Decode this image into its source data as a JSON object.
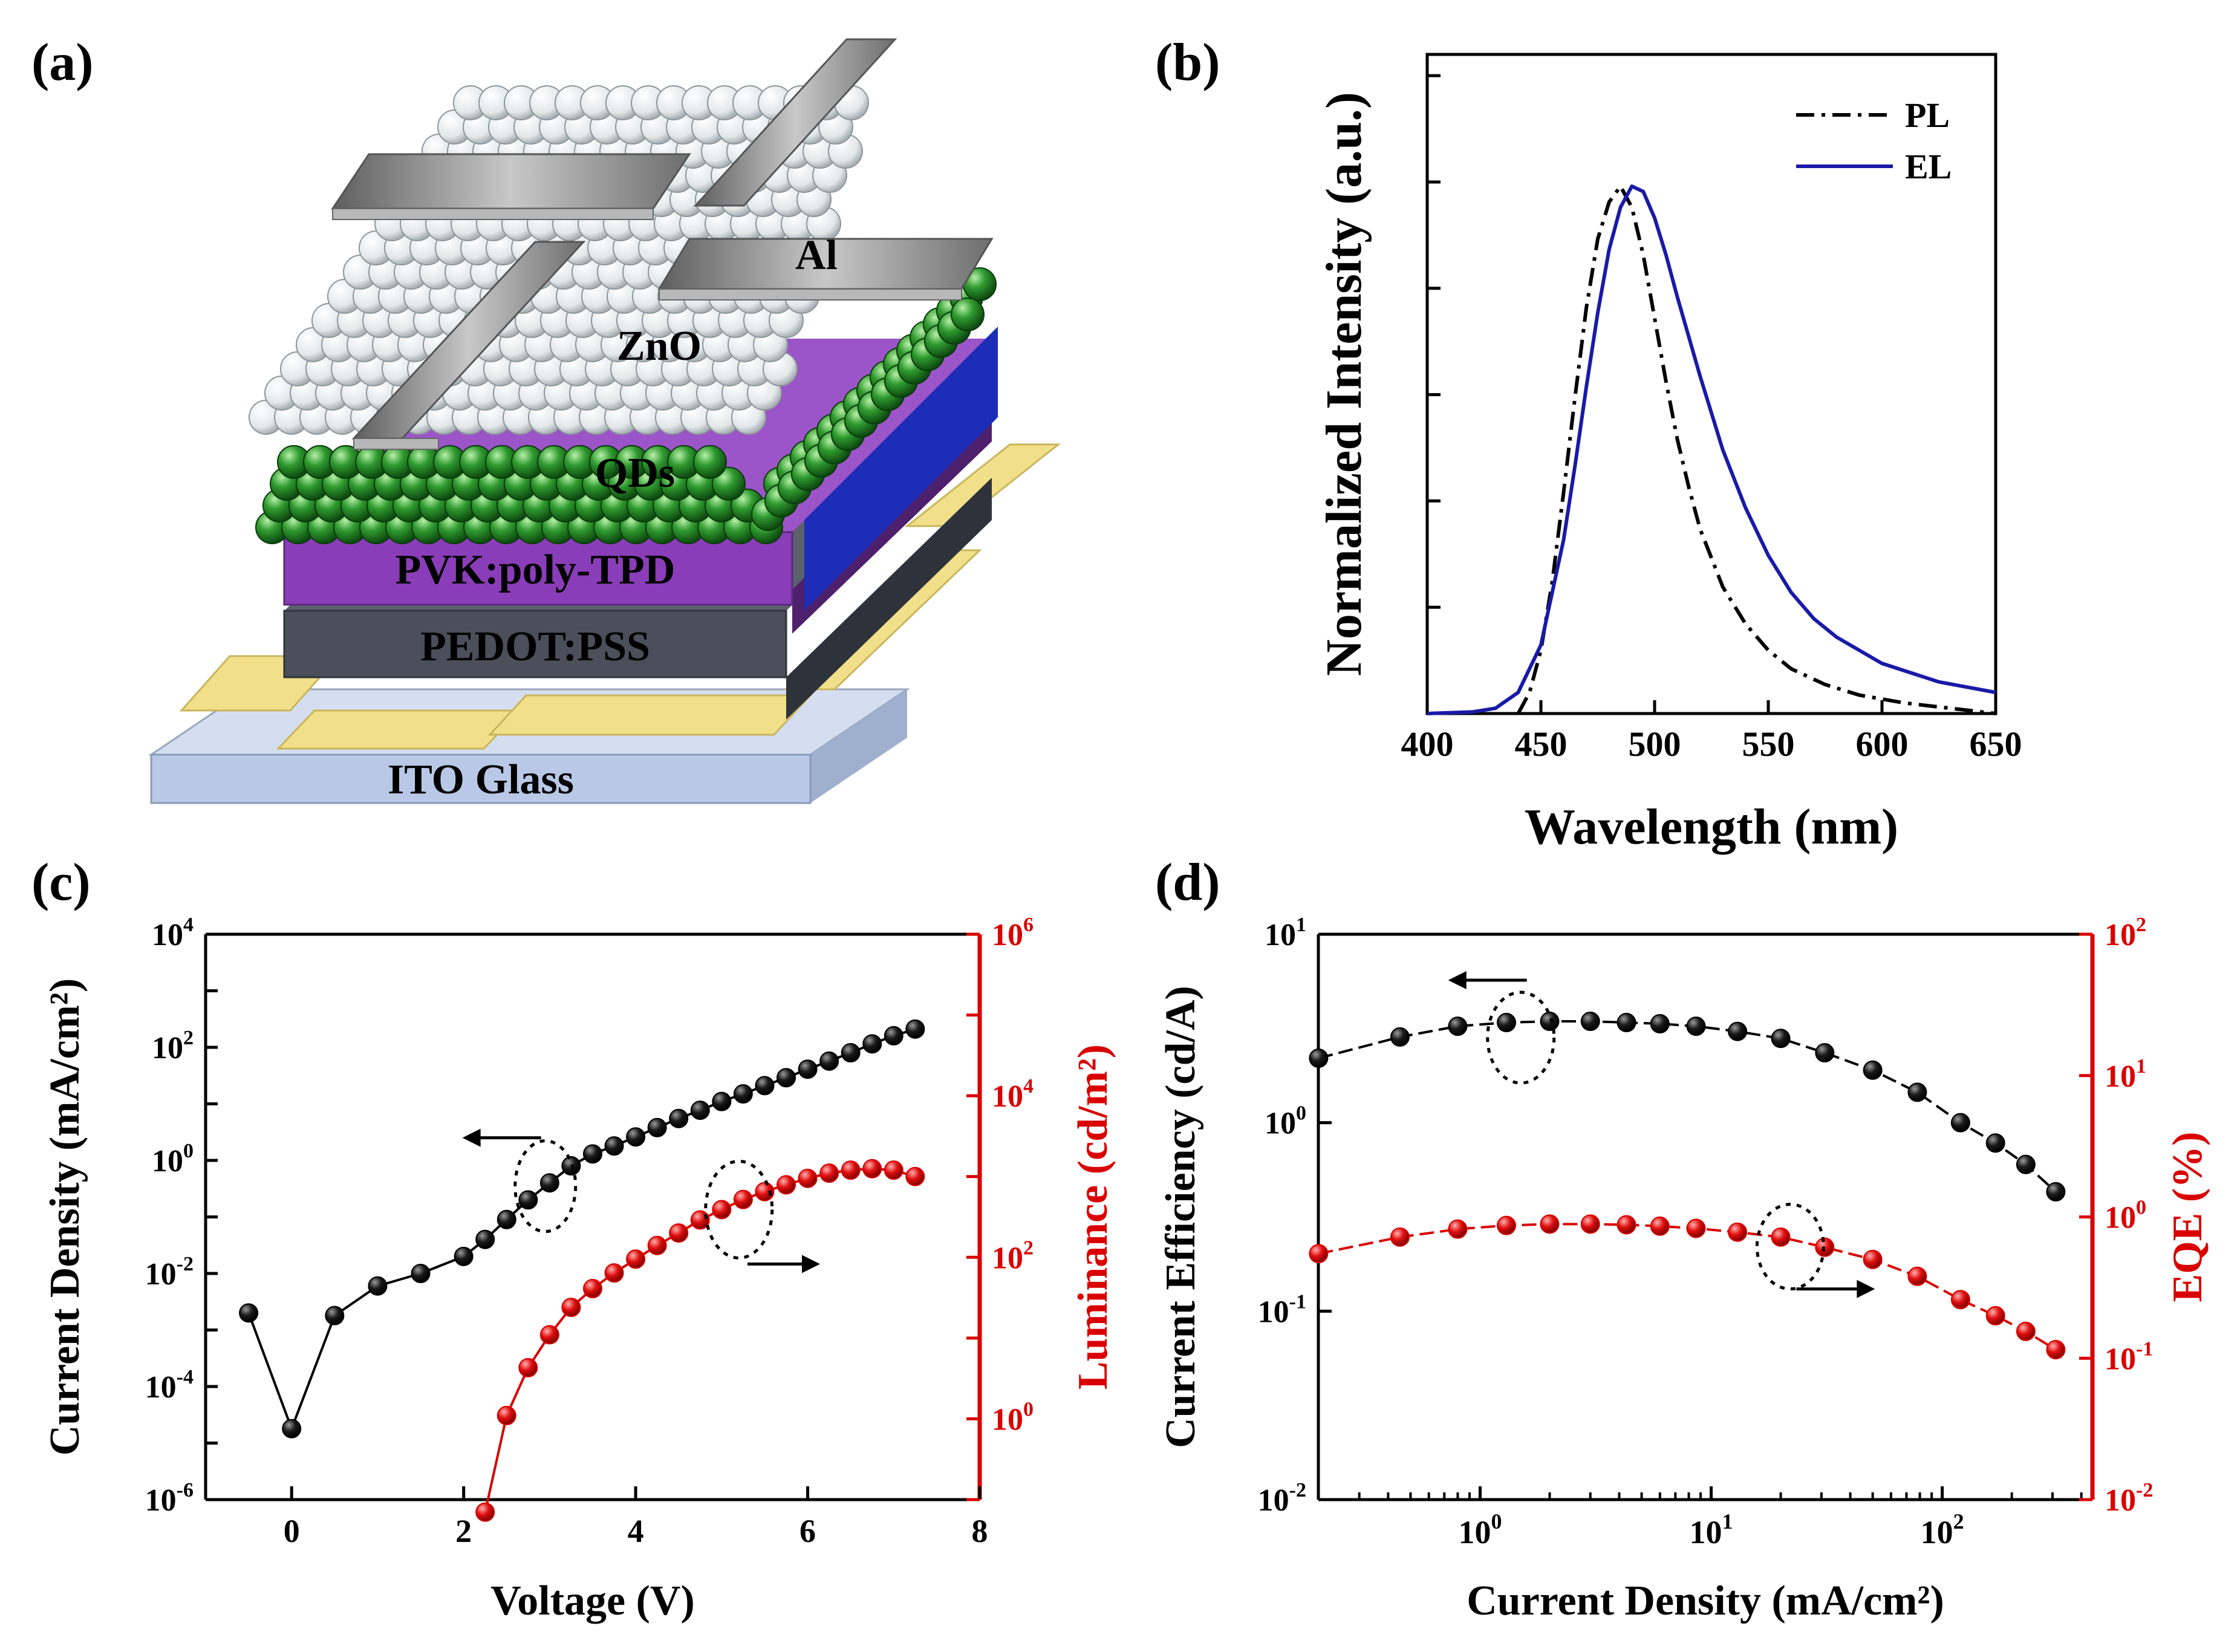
{
  "figure": {
    "panel_labels": [
      "(a)",
      "(b)",
      "(c)",
      "(d)"
    ]
  },
  "device": {
    "layers": [
      "Al",
      "ZnO",
      "QDs",
      "PVK:poly-TPD",
      "PEDOT:PSS",
      "ITO Glass"
    ]
  },
  "colors": {
    "black": "#000000",
    "red": "#d90000",
    "blue": "#1a1aa8",
    "pvk": "#8a3db8",
    "pedot": "#4a4f5a",
    "ito": "#b9c8e6",
    "gold": "#f1df8a",
    "qd": "#2f9a2f",
    "zno": "#e6eaec",
    "al": "#8d8d8d"
  },
  "chart_data": [
    {
      "panel": "b",
      "type": "line",
      "xlabel": "Wavelength (nm)",
      "ylabel": "Normalized Intensity (a.u.)",
      "xlim": [
        400,
        650
      ],
      "ylim": [
        0,
        1.25
      ],
      "xticks": [
        400,
        450,
        500,
        550,
        600,
        650
      ],
      "xtick_labels": [
        "400",
        "450",
        "500",
        "550",
        "600",
        "650"
      ],
      "legend_position": "top-right",
      "series": [
        {
          "name": "PL",
          "style": "dash-dot",
          "x": [
            440,
            445,
            450,
            455,
            460,
            465,
            470,
            475,
            480,
            485,
            490,
            495,
            500,
            505,
            510,
            515,
            520,
            530,
            540,
            550,
            560,
            575,
            590,
            610,
            630,
            650
          ],
          "y": [
            0.0,
            0.04,
            0.12,
            0.25,
            0.42,
            0.6,
            0.77,
            0.9,
            0.97,
            1.0,
            0.96,
            0.87,
            0.75,
            0.63,
            0.52,
            0.43,
            0.35,
            0.24,
            0.17,
            0.12,
            0.085,
            0.055,
            0.035,
            0.02,
            0.01,
            0.0
          ]
        },
        {
          "name": "EL",
          "style": "solid",
          "x": [
            400,
            420,
            430,
            440,
            450,
            460,
            465,
            470,
            475,
            480,
            485,
            490,
            495,
            500,
            505,
            510,
            520,
            530,
            540,
            550,
            560,
            570,
            580,
            600,
            625,
            650
          ],
          "y": [
            0.0,
            0.003,
            0.01,
            0.04,
            0.13,
            0.33,
            0.47,
            0.62,
            0.76,
            0.88,
            0.96,
            1.0,
            0.99,
            0.94,
            0.87,
            0.79,
            0.64,
            0.5,
            0.39,
            0.3,
            0.23,
            0.18,
            0.145,
            0.095,
            0.06,
            0.04
          ]
        }
      ]
    },
    {
      "panel": "c",
      "type": "scatter",
      "xlabel": "Voltage (V)",
      "ylabel": "Current Density (mA/cm²)",
      "ylabel_right": "Luminance (cd/m²)",
      "xlim": [
        -1,
        8
      ],
      "xticks": [
        0,
        2,
        4,
        6,
        8
      ],
      "xtick_labels": [
        "0",
        "2",
        "4",
        "6",
        "8"
      ],
      "y_log_range": [
        -6,
        4
      ],
      "yticks_exp": [
        -6,
        -4,
        -2,
        0,
        2,
        4
      ],
      "y_right_log_range": [
        -1,
        6
      ],
      "yticks_right_exp": [
        0,
        2,
        4,
        6
      ],
      "tick_base": "10",
      "series": [
        {
          "name": "Current Density",
          "axis": "left",
          "color": "black",
          "x": [
            -0.5,
            0.0,
            0.5,
            1.0,
            1.5,
            2.0,
            2.25,
            2.5,
            2.75,
            3.0,
            3.25,
            3.5,
            3.75,
            4.0,
            4.25,
            4.5,
            4.75,
            5.0,
            5.25,
            5.5,
            5.75,
            6.0,
            6.25,
            6.5,
            6.75,
            7.0,
            7.25
          ],
          "y": [
            0.002,
            1.8e-05,
            0.0018,
            0.006,
            0.01,
            0.02,
            0.04,
            0.09,
            0.2,
            0.4,
            0.8,
            1.3,
            1.8,
            2.6,
            3.8,
            5.5,
            7.7,
            11,
            15,
            21,
            29,
            41,
            57,
            80,
            115,
            160,
            210
          ]
        },
        {
          "name": "Luminance",
          "axis": "right",
          "color": "red",
          "x": [
            2.25,
            2.5,
            2.75,
            3.0,
            3.25,
            3.5,
            3.75,
            4.0,
            4.25,
            4.5,
            4.75,
            5.0,
            5.25,
            5.5,
            5.75,
            6.0,
            6.25,
            6.5,
            6.75,
            7.0,
            7.25
          ],
          "y": [
            0.07,
            1.1,
            4.3,
            11,
            24,
            41,
            64,
            95,
            140,
            200,
            290,
            390,
            520,
            650,
            790,
            950,
            1100,
            1200,
            1250,
            1200,
            1000
          ]
        }
      ]
    },
    {
      "panel": "d",
      "type": "scatter",
      "xlabel": "Current Density (mA/cm²)",
      "ylabel": "Current Efficiency (cd/A)",
      "ylabel_right": "EQE (%)",
      "x_log_range": [
        -0.7,
        2.65
      ],
      "xticks_exp": [
        0,
        1,
        2
      ],
      "y_log_range": [
        -2,
        1
      ],
      "yticks_exp": [
        -2,
        -1,
        0,
        1
      ],
      "y_right_log_range": [
        -2,
        2
      ],
      "yticks_right_exp": [
        -2,
        -1,
        0,
        1,
        2
      ],
      "tick_base": "10",
      "series": [
        {
          "name": "Current Efficiency",
          "axis": "left",
          "color": "black",
          "x": [
            0.2,
            0.45,
            0.8,
            1.3,
            2.0,
            3.0,
            4.3,
            6.0,
            8.6,
            13,
            20,
            31,
            50,
            78,
            120,
            170,
            230,
            310
          ],
          "y": [
            2.2,
            2.85,
            3.25,
            3.4,
            3.45,
            3.45,
            3.4,
            3.35,
            3.25,
            3.05,
            2.8,
            2.35,
            1.9,
            1.45,
            1.0,
            0.78,
            0.6,
            0.43
          ]
        },
        {
          "name": "EQE",
          "axis": "right",
          "color": "red",
          "x": [
            0.2,
            0.45,
            0.8,
            1.3,
            2.0,
            3.0,
            4.3,
            6.0,
            8.6,
            13,
            20,
            31,
            50,
            78,
            120,
            170,
            230,
            310
          ],
          "y": [
            0.55,
            0.72,
            0.82,
            0.87,
            0.89,
            0.89,
            0.88,
            0.86,
            0.83,
            0.78,
            0.72,
            0.61,
            0.5,
            0.38,
            0.26,
            0.2,
            0.155,
            0.115
          ]
        }
      ]
    }
  ]
}
